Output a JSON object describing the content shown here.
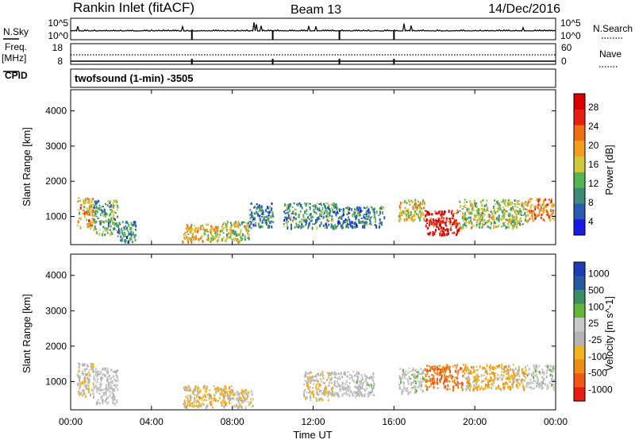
{
  "header": {
    "station": "Rankin Inlet (fitACF)",
    "beam": "Beam 13",
    "date": "14/Dec/2016"
  },
  "ancillary": {
    "nsky_label": "N.Sky",
    "nsearch_label": "N.Search",
    "nsky_ticks": [
      "10^5",
      "10^0"
    ],
    "nsearch_ticks": [
      "10^5",
      "10^0"
    ],
    "freq_label": "Freq.",
    "freq_unit": "[MHz]",
    "freq_ticks": [
      "18",
      "8"
    ],
    "nave_label": "Nave",
    "nave_ticks": [
      "60",
      "0"
    ],
    "cpid_label": "CPID",
    "cpid_text": "twofsound (1-min) -3505"
  },
  "colors": {
    "power": [
      "#1a1ae6",
      "#2a5bb0",
      "#3c8c78",
      "#55b455",
      "#d2c83c",
      "#f0a01e",
      "#f06e14",
      "#e61e14",
      "#dc0000"
    ],
    "velocity": [
      "#1e3cb4",
      "#285aa0",
      "#3c8c64",
      "#64b43c",
      "#c8c8c8",
      "#b4b4b4",
      "#f0b41e",
      "#f08c14",
      "#f05a14",
      "#e61e14"
    ]
  },
  "chart_data": [
    {
      "type": "heatmap",
      "panel": "power",
      "xlabel": "Time UT",
      "ylabel": "Slant Range [km]",
      "colorbar_label": "Power [dB]",
      "colorbar_ticks": [
        "28",
        "24",
        "20",
        "16",
        "12",
        "8",
        "4"
      ],
      "colorbar_range": [
        0,
        30
      ],
      "x_ticks": [
        "00:00",
        "04:00",
        "08:00",
        "12:00",
        "16:00",
        "20:00",
        "00:00"
      ],
      "x_range_hours": [
        0,
        24
      ],
      "y_ticks": [
        "4000",
        "3000",
        "2000",
        "1000"
      ],
      "y_range": [
        200,
        4600
      ],
      "regions": [
        {
          "x": [
            0.3,
            1.1
          ],
          "y": [
            700,
            1550
          ],
          "level": 18
        },
        {
          "x": [
            1.1,
            2.3
          ],
          "y": [
            500,
            1500
          ],
          "level": 10
        },
        {
          "x": [
            2.3,
            3.2
          ],
          "y": [
            300,
            900
          ],
          "level": 8
        },
        {
          "x": [
            5.5,
            7.5
          ],
          "y": [
            300,
            800
          ],
          "level": 17
        },
        {
          "x": [
            7.5,
            8.8
          ],
          "y": [
            300,
            900
          ],
          "level": 13
        },
        {
          "x": [
            8.8,
            10.0
          ],
          "y": [
            700,
            1400
          ],
          "level": 8
        },
        {
          "x": [
            10.5,
            13.2
          ],
          "y": [
            700,
            1400
          ],
          "level": 9
        },
        {
          "x": [
            13.2,
            15.5
          ],
          "y": [
            700,
            1300
          ],
          "level": 8
        },
        {
          "x": [
            16.2,
            17.5
          ],
          "y": [
            900,
            1500
          ],
          "level": 16
        },
        {
          "x": [
            17.5,
            19.2
          ],
          "y": [
            500,
            1200
          ],
          "level": 27
        },
        {
          "x": [
            19.2,
            22.5
          ],
          "y": [
            700,
            1500
          ],
          "level": 14
        },
        {
          "x": [
            22.5,
            23.9
          ],
          "y": [
            900,
            1550
          ],
          "level": 20
        }
      ]
    },
    {
      "type": "heatmap",
      "panel": "velocity",
      "xlabel": "Time UT",
      "ylabel": "Slant Range [km]",
      "colorbar_label": "Velocity [m s^-1]",
      "colorbar_ticks": [
        "1000",
        "500",
        "100",
        "25",
        "-25",
        "-100",
        "-500",
        "-1000"
      ],
      "colorbar_range": [
        -1000,
        1000
      ],
      "x_ticks": [
        "00:00",
        "04:00",
        "08:00",
        "12:00",
        "16:00",
        "20:00",
        "00:00"
      ],
      "x_range_hours": [
        0,
        24
      ],
      "y_ticks": [
        "4000",
        "3000",
        "2000",
        "1000"
      ],
      "y_range": [
        200,
        4600
      ],
      "regions": [
        {
          "x": [
            0.3,
            1.1
          ],
          "y": [
            600,
            1550
          ],
          "level": -150
        },
        {
          "x": [
            1.1,
            2.3
          ],
          "y": [
            400,
            1400
          ],
          "level": 0
        },
        {
          "x": [
            5.5,
            8.0
          ],
          "y": [
            300,
            900
          ],
          "level": -250
        },
        {
          "x": [
            8.0,
            9.0
          ],
          "y": [
            300,
            800
          ],
          "level": -100
        },
        {
          "x": [
            11.5,
            13.0
          ],
          "y": [
            500,
            1300
          ],
          "level": -150
        },
        {
          "x": [
            13.0,
            15.0
          ],
          "y": [
            600,
            1300
          ],
          "level": 20
        },
        {
          "x": [
            16.2,
            17.5
          ],
          "y": [
            700,
            1400
          ],
          "level": 80
        },
        {
          "x": [
            17.5,
            19.5
          ],
          "y": [
            800,
            1500
          ],
          "level": -600
        },
        {
          "x": [
            19.5,
            22.5
          ],
          "y": [
            800,
            1500
          ],
          "level": -300
        },
        {
          "x": [
            22.5,
            23.9
          ],
          "y": [
            800,
            1500
          ],
          "level": 50
        }
      ]
    }
  ]
}
